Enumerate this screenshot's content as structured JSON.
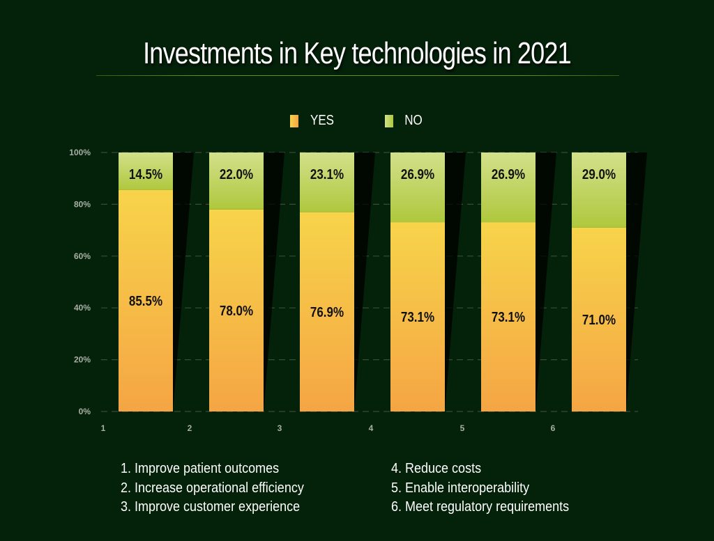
{
  "chart_data": {
    "type": "bar",
    "stacked": true,
    "title": "Investments in Key technologies in 2021",
    "categories": [
      "1",
      "2",
      "3",
      "4",
      "5",
      "6"
    ],
    "series": [
      {
        "name": "YES",
        "values": [
          85.5,
          78.0,
          76.9,
          73.1,
          73.1,
          71.0
        ],
        "labels": [
          "85.5%",
          "78.0%",
          "76.9%",
          "73.1%",
          "73.1%",
          "71.0%"
        ]
      },
      {
        "name": "NO",
        "values": [
          14.5,
          22.0,
          23.1,
          26.9,
          26.9,
          29.0
        ],
        "labels": [
          "14.5%",
          "22.0%",
          "23.1%",
          "26.9%",
          "26.9%",
          "29.0%"
        ]
      }
    ],
    "ylim": [
      0,
      100
    ],
    "yticks": [
      "0%",
      "20%",
      "40%",
      "60%",
      "80%",
      "100%"
    ],
    "grid": true,
    "legend_position": "top",
    "colors": {
      "YES": [
        "#f7d44a",
        "#f5a544"
      ],
      "NO": [
        "#d3e08b",
        "#aec83d"
      ],
      "background": "#04210a"
    }
  },
  "category_legend": [
    "1. Improve patient outcomes",
    "2. Increase operational efficiency",
    "3. Improve customer experience",
    "4. Reduce costs",
    "5. Enable interoperability",
    "6. Meet regulatory requirements"
  ]
}
